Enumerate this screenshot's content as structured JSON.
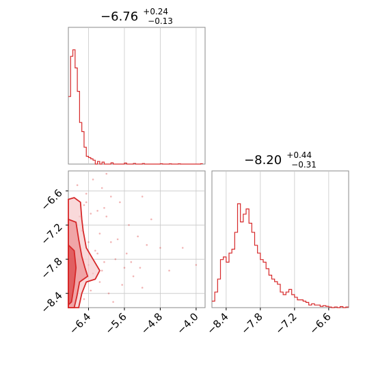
{
  "colors": {
    "series": "#d62728",
    "fill_light": "#f6c9ca",
    "fill_mid": "#ec8f91",
    "grid": "#c8c8c8",
    "frame": "#888888"
  },
  "chart_data": [
    {
      "type": "histogram",
      "panel": "top-left",
      "title": {
        "median": "−6.76",
        "upper": "+0.24",
        "lower": "−0.13"
      },
      "xlim": [
        -6.85,
        -3.8
      ],
      "x_gridlines": [
        -6.4,
        -5.6,
        -4.8,
        -4.0
      ],
      "bins": [
        [
          -6.85,
          0.52
        ],
        [
          -6.8,
          0.83
        ],
        [
          -6.75,
          0.88
        ],
        [
          -6.7,
          0.74
        ],
        [
          -6.65,
          0.56
        ],
        [
          -6.6,
          0.32
        ],
        [
          -6.55,
          0.25
        ],
        [
          -6.5,
          0.13
        ],
        [
          -6.45,
          0.06
        ],
        [
          -6.4,
          0.05
        ],
        [
          -6.35,
          0.04
        ],
        [
          -6.3,
          0.03
        ],
        [
          -6.2,
          0.02
        ],
        [
          -6.1,
          0.015
        ],
        [
          -5.9,
          0.01
        ],
        [
          -5.6,
          0.008
        ],
        [
          -5.4,
          0.005
        ],
        [
          -5.2,
          0.004
        ],
        [
          -4.8,
          0.003
        ],
        [
          -4.6,
          0.002
        ],
        [
          -4.4,
          0.002
        ],
        [
          -3.9,
          0.003
        ]
      ],
      "bin_width": 0.05,
      "ymax": 1.0
    },
    {
      "type": "histogram",
      "panel": "bottom-right",
      "title": {
        "median": "−8.20",
        "upper": "+0.44",
        "lower": "−0.31"
      },
      "xlim": [
        -8.65,
        -6.25
      ],
      "x_ticks": [
        -8.4,
        -7.8,
        -7.2,
        -6.6
      ],
      "tick_labels": [
        "−8.4",
        "−7.8",
        "−7.2",
        "−6.6"
      ],
      "bins": [
        [
          -8.65,
          0.05
        ],
        [
          -8.6,
          0.12
        ],
        [
          -8.55,
          0.22
        ],
        [
          -8.5,
          0.37
        ],
        [
          -8.45,
          0.39
        ],
        [
          -8.4,
          0.35
        ],
        [
          -8.35,
          0.42
        ],
        [
          -8.3,
          0.45
        ],
        [
          -8.25,
          0.58
        ],
        [
          -8.2,
          0.8
        ],
        [
          -8.15,
          0.66
        ],
        [
          -8.1,
          0.72
        ],
        [
          -8.05,
          0.76
        ],
        [
          -8.0,
          0.65
        ],
        [
          -7.95,
          0.58
        ],
        [
          -7.9,
          0.48
        ],
        [
          -7.85,
          0.42
        ],
        [
          -7.8,
          0.37
        ],
        [
          -7.75,
          0.35
        ],
        [
          -7.7,
          0.3
        ],
        [
          -7.65,
          0.25
        ],
        [
          -7.6,
          0.22
        ],
        [
          -7.55,
          0.2
        ],
        [
          -7.5,
          0.18
        ],
        [
          -7.45,
          0.12
        ],
        [
          -7.4,
          0.1
        ],
        [
          -7.35,
          0.12
        ],
        [
          -7.3,
          0.14
        ],
        [
          -7.25,
          0.1
        ],
        [
          -7.2,
          0.08
        ],
        [
          -7.15,
          0.06
        ],
        [
          -7.1,
          0.06
        ],
        [
          -7.05,
          0.05
        ],
        [
          -7.0,
          0.04
        ],
        [
          -6.95,
          0.02
        ],
        [
          -6.9,
          0.03
        ],
        [
          -6.85,
          0.02
        ],
        [
          -6.8,
          0.02
        ],
        [
          -6.75,
          0.01
        ],
        [
          -6.7,
          0.015
        ],
        [
          -6.65,
          0.01
        ],
        [
          -6.6,
          0.005
        ],
        [
          -6.5,
          0.005
        ],
        [
          -6.4,
          0.008
        ],
        [
          -6.3,
          0.005
        ]
      ],
      "bin_width": 0.05,
      "ymax": 1.0
    },
    {
      "type": "scatter",
      "panel": "bottom-left",
      "xlim": [
        -6.85,
        -3.8
      ],
      "ylim": [
        -8.65,
        -6.25
      ],
      "x_ticks": [
        -6.4,
        -5.6,
        -4.8,
        -4.0
      ],
      "x_tick_labels": [
        "−6.4",
        "−5.6",
        "−4.8",
        "−4.0"
      ],
      "y_ticks": [
        -6.6,
        -7.2,
        -7.8,
        -8.4
      ],
      "y_tick_labels": [
        "−6.6",
        "−7.2",
        "−7.8",
        "−8.4"
      ],
      "points": [
        [
          -6.3,
          -6.4
        ],
        [
          -6.1,
          -6.55
        ],
        [
          -5.9,
          -6.7
        ],
        [
          -5.7,
          -6.8
        ],
        [
          -6.5,
          -6.85
        ],
        [
          -6.2,
          -6.95
        ],
        [
          -6.0,
          -7.05
        ],
        [
          -5.5,
          -7.2
        ],
        [
          -5.3,
          -7.4
        ],
        [
          -5.1,
          -7.55
        ],
        [
          -4.8,
          -7.6
        ],
        [
          -4.3,
          -7.6
        ],
        [
          -5.8,
          -7.8
        ],
        [
          -5.6,
          -7.95
        ],
        [
          -5.4,
          -8.1
        ],
        [
          -5.2,
          -8.3
        ],
        [
          -6.4,
          -7.5
        ],
        [
          -6.25,
          -7.65
        ],
        [
          -6.05,
          -7.85
        ],
        [
          -6.15,
          -8.2
        ],
        [
          -5.95,
          -8.4
        ],
        [
          -6.3,
          -8.05
        ],
        [
          -6.55,
          -7.3
        ],
        [
          -6.45,
          -6.65
        ],
        [
          -6.65,
          -6.5
        ],
        [
          -6.15,
          -7.35
        ],
        [
          -5.75,
          -7.45
        ],
        [
          -5.55,
          -7.7
        ],
        [
          -6.35,
          -8.35
        ],
        [
          -6.5,
          -8.5
        ],
        [
          -4.6,
          -8.0
        ],
        [
          -4.0,
          -7.9
        ],
        [
          -5.0,
          -7.1
        ],
        [
          -5.2,
          -6.7
        ],
        [
          -6.0,
          -6.3
        ],
        [
          -6.35,
          -7.0
        ],
        [
          -6.2,
          -7.7
        ],
        [
          -6.1,
          -8.0
        ],
        [
          -5.9,
          -7.5
        ],
        [
          -5.65,
          -8.25
        ],
        [
          -5.85,
          -8.55
        ],
        [
          -6.4,
          -7.9
        ],
        [
          -6.55,
          -8.15
        ],
        [
          -6.6,
          -7.05
        ],
        [
          -6.45,
          -6.8
        ],
        [
          -6.05,
          -6.9
        ],
        [
          -5.45,
          -7.85
        ],
        [
          -5.25,
          -7.95
        ]
      ],
      "contours": [
        {
          "level": "outer",
          "points": [
            [
              -6.85,
              -6.75
            ],
            [
              -6.72,
              -6.72
            ],
            [
              -6.58,
              -6.8
            ],
            [
              -6.55,
              -7.1
            ],
            [
              -6.52,
              -7.3
            ],
            [
              -6.45,
              -7.6
            ],
            [
              -6.3,
              -7.8
            ],
            [
              -6.15,
              -8.0
            ],
            [
              -6.25,
              -8.15
            ],
            [
              -6.45,
              -8.2
            ],
            [
              -6.55,
              -8.4
            ],
            [
              -6.62,
              -8.65
            ],
            [
              -6.85,
              -8.65
            ]
          ]
        },
        {
          "level": "middle",
          "points": [
            [
              -6.85,
              -7.1
            ],
            [
              -6.68,
              -7.15
            ],
            [
              -6.62,
              -7.45
            ],
            [
              -6.55,
              -7.75
            ],
            [
              -6.48,
              -7.95
            ],
            [
              -6.42,
              -8.1
            ],
            [
              -6.6,
              -8.2
            ],
            [
              -6.66,
              -8.45
            ],
            [
              -6.72,
              -8.65
            ],
            [
              -6.85,
              -8.65
            ]
          ]
        },
        {
          "level": "inner",
          "points": [
            [
              -6.85,
              -7.55
            ],
            [
              -6.72,
              -7.65
            ],
            [
              -6.68,
              -7.95
            ],
            [
              -6.72,
              -8.25
            ],
            [
              -6.78,
              -8.55
            ],
            [
              -6.85,
              -8.6
            ]
          ]
        }
      ]
    }
  ]
}
